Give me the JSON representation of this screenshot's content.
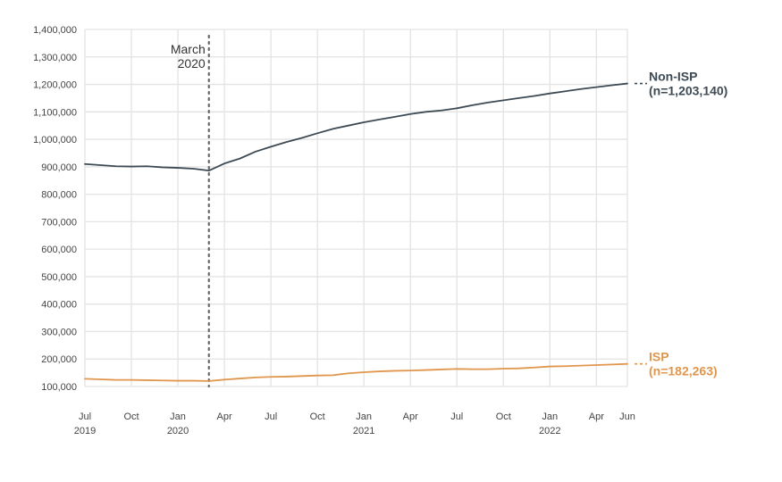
{
  "chart_data": {
    "type": "line",
    "x_months": [
      "2019-07",
      "2019-08",
      "2019-09",
      "2019-10",
      "2019-11",
      "2019-12",
      "2020-01",
      "2020-02",
      "2020-03",
      "2020-04",
      "2020-05",
      "2020-06",
      "2020-07",
      "2020-08",
      "2020-09",
      "2020-10",
      "2020-11",
      "2020-12",
      "2021-01",
      "2021-02",
      "2021-03",
      "2021-04",
      "2021-05",
      "2021-06",
      "2021-07",
      "2021-08",
      "2021-09",
      "2021-10",
      "2021-11",
      "2021-12",
      "2022-01",
      "2022-02",
      "2022-03",
      "2022-04",
      "2022-05",
      "2022-06"
    ],
    "x_ticks": [
      {
        "month": "2019-07",
        "label": "Jul",
        "year": "2019"
      },
      {
        "month": "2019-10",
        "label": "Oct",
        "year": ""
      },
      {
        "month": "2020-01",
        "label": "Jan",
        "year": "2020"
      },
      {
        "month": "2020-04",
        "label": "Apr",
        "year": ""
      },
      {
        "month": "2020-07",
        "label": "Jul",
        "year": ""
      },
      {
        "month": "2020-10",
        "label": "Oct",
        "year": ""
      },
      {
        "month": "2021-01",
        "label": "Jan",
        "year": "2021"
      },
      {
        "month": "2021-04",
        "label": "Apr",
        "year": ""
      },
      {
        "month": "2021-07",
        "label": "Jul",
        "year": ""
      },
      {
        "month": "2021-10",
        "label": "Oct",
        "year": ""
      },
      {
        "month": "2022-01",
        "label": "Jan",
        "year": "2022"
      },
      {
        "month": "2022-04",
        "label": "Apr",
        "year": ""
      },
      {
        "month": "2022-06",
        "label": "Jun",
        "year": ""
      }
    ],
    "y_ticks": [
      {
        "value": 100000,
        "label": "100,000"
      },
      {
        "value": 200000,
        "label": "200,000"
      },
      {
        "value": 300000,
        "label": "300,000"
      },
      {
        "value": 400000,
        "label": "400,000"
      },
      {
        "value": 500000,
        "label": "500,000"
      },
      {
        "value": 600000,
        "label": "600,000"
      },
      {
        "value": 700000,
        "label": "700,000"
      },
      {
        "value": 800000,
        "label": "800,000"
      },
      {
        "value": 900000,
        "label": "900,000"
      },
      {
        "value": 1000000,
        "label": "1,000,000"
      },
      {
        "value": 1100000,
        "label": "1,100,000"
      },
      {
        "value": 1200000,
        "label": "1,200,000"
      },
      {
        "value": 1300000,
        "label": "1,300,000"
      },
      {
        "value": 1400000,
        "label": "1,400,000"
      }
    ],
    "ylim": [
      100000,
      1400000
    ],
    "grid": true,
    "series": [
      {
        "name": "Non-ISP",
        "label_line1": "Non-ISP",
        "label_line2": "(n=1,203,140)",
        "color": "#3d4a54",
        "values": [
          910000,
          906000,
          902000,
          901000,
          902000,
          898000,
          896000,
          893000,
          886000,
          912000,
          930000,
          955000,
          973000,
          990000,
          1005000,
          1022000,
          1038000,
          1050000,
          1062000,
          1072000,
          1082000,
          1092000,
          1100000,
          1105000,
          1113000,
          1124000,
          1134000,
          1142000,
          1150000,
          1158000,
          1167000,
          1175000,
          1183000,
          1190000,
          1197000,
          1203140
        ]
      },
      {
        "name": "ISP",
        "label_line1": "ISP",
        "label_line2": "(n=182,263)",
        "color": "#e0964c",
        "values": [
          128000,
          126000,
          124000,
          124000,
          123000,
          122000,
          121000,
          121000,
          120000,
          125000,
          129000,
          133000,
          135000,
          136000,
          138000,
          140000,
          141000,
          148000,
          152000,
          155000,
          157000,
          158000,
          160000,
          162000,
          164000,
          163000,
          163000,
          165000,
          166000,
          169000,
          173000,
          174000,
          176000,
          178000,
          180000,
          182263
        ]
      }
    ],
    "annotation": {
      "month": "2020-03",
      "line1": "March",
      "line2": "2020"
    }
  }
}
